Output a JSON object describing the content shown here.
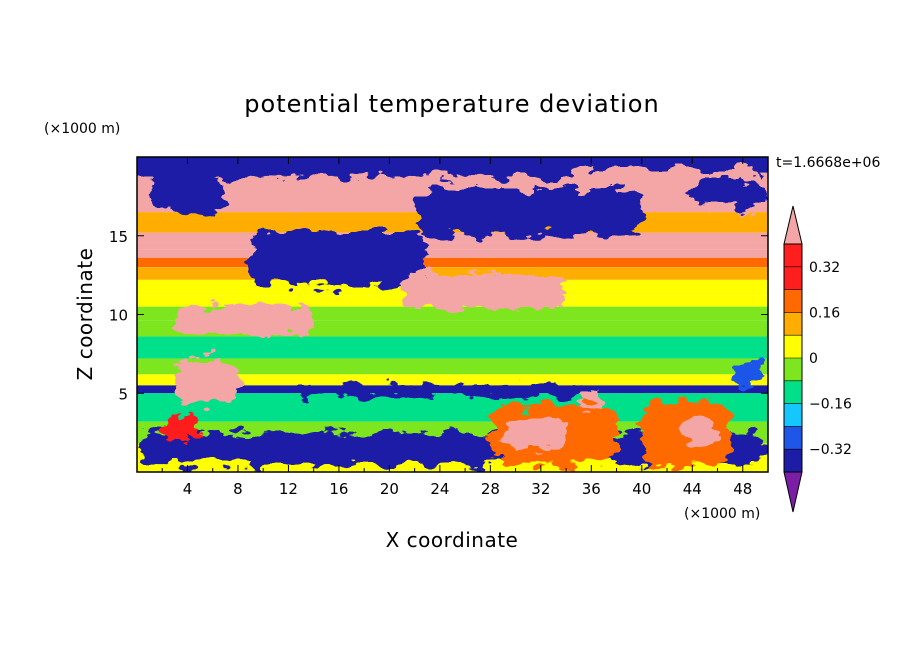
{
  "chart_data": {
    "type": "heatmap",
    "title": "potential temperature deviation",
    "xlabel": "X coordinate",
    "ylabel": "Z coordinate",
    "x_unit": "(×1000 m)",
    "y_unit": "(×1000 m)",
    "time_label": "t=1.6668e+06",
    "xlim": [
      0,
      50
    ],
    "ylim": [
      0,
      20
    ],
    "x_ticks": [
      4,
      8,
      12,
      16,
      20,
      24,
      28,
      32,
      36,
      40,
      44,
      48
    ],
    "y_ticks": [
      5,
      10,
      15
    ],
    "colorbar": {
      "levels": [
        -0.4,
        -0.32,
        -0.24,
        -0.16,
        -0.08,
        0,
        0.08,
        0.16,
        0.24,
        0.32,
        0.4
      ],
      "labels": [
        "0.32",
        "0.16",
        "0",
        "-0.16",
        "-0.32"
      ],
      "label_values": [
        0.32,
        0.16,
        0,
        -0.16,
        -0.32
      ],
      "colors_low_to_high": [
        "#7a1ea6",
        "#1c1ca6",
        "#1e56e8",
        "#14c8ff",
        "#00e08a",
        "#7ee61e",
        "#ffff00",
        "#ffad00",
        "#ff6a00",
        "#ff1e1e",
        "#f4a6a6"
      ]
    },
    "bands": [
      {
        "z": [
          19.0,
          20.0
        ],
        "value": -0.4
      },
      {
        "z": [
          16.5,
          19.0
        ],
        "value": 0.35
      },
      {
        "z": [
          15.2,
          16.5
        ],
        "value": 0.12
      },
      {
        "z": [
          14.6,
          15.2
        ],
        "value": 0.36
      },
      {
        "z": [
          14.1,
          14.6
        ],
        "value": 0.36
      },
      {
        "z": [
          13.6,
          14.1
        ],
        "value": 0.34
      },
      {
        "z": [
          13.0,
          13.6
        ],
        "value": 0.22
      },
      {
        "z": [
          12.2,
          13.0
        ],
        "value": 0.14
      },
      {
        "z": [
          11.2,
          12.2
        ],
        "value": 0.07
      },
      {
        "z": [
          10.5,
          11.2
        ],
        "value": 0.0
      },
      {
        "z": [
          9.6,
          10.5
        ],
        "value": -0.06
      },
      {
        "z": [
          8.6,
          9.6
        ],
        "value": -0.03
      },
      {
        "z": [
          7.2,
          8.6
        ],
        "value": -0.11
      },
      {
        "z": [
          6.2,
          7.2
        ],
        "value": -0.05
      },
      {
        "z": [
          5.5,
          6.2
        ],
        "value": 0.03
      },
      {
        "z": [
          5.0,
          5.5
        ],
        "value": -0.4
      },
      {
        "z": [
          3.2,
          5.0
        ],
        "value": -0.1
      },
      {
        "z": [
          1.8,
          3.2
        ],
        "value": -0.03
      },
      {
        "z": [
          0.0,
          1.8
        ],
        "value": 0.02
      }
    ],
    "patches": [
      {
        "x": [
          0,
          50
        ],
        "z": [
          18.6,
          20.0
        ],
        "value": -0.4
      },
      {
        "x": [
          8,
          33
        ],
        "z": [
          16.8,
          18.8
        ],
        "value": 0.35
      },
      {
        "x": [
          34,
          50
        ],
        "z": [
          16.7,
          19.3
        ],
        "value": 0.35
      },
      {
        "x": [
          9,
          23
        ],
        "z": [
          11.8,
          15.3
        ],
        "value": -0.4
      },
      {
        "x": [
          22,
          40
        ],
        "z": [
          15.0,
          18.0
        ],
        "value": -0.4
      },
      {
        "x": [
          1,
          7
        ],
        "z": [
          16.4,
          18.8
        ],
        "value": -0.4
      },
      {
        "x": [
          44,
          50
        ],
        "z": [
          16.8,
          18.6
        ],
        "value": -0.4
      },
      {
        "x": [
          3,
          14
        ],
        "z": [
          8.7,
          10.5
        ],
        "value": 0.35
      },
      {
        "x": [
          21,
          34
        ],
        "z": [
          10.4,
          12.6
        ],
        "value": 0.35
      },
      {
        "x": [
          3,
          8
        ],
        "z": [
          4.3,
          7.3
        ],
        "value": 0.35
      },
      {
        "x": [
          35,
          37
        ],
        "z": [
          3.5,
          5.2
        ],
        "value": 0.35
      },
      {
        "x": [
          12,
          36
        ],
        "z": [
          4.8,
          5.5
        ],
        "value": -0.4
      },
      {
        "x": [
          0,
          50
        ],
        "z": [
          0.5,
          2.5
        ],
        "value": -0.35
      },
      {
        "x": [
          28,
          38
        ],
        "z": [
          0.4,
          4.2
        ],
        "value": 0.22
      },
      {
        "x": [
          29,
          34
        ],
        "z": [
          1.5,
          3.5
        ],
        "value": 0.36
      },
      {
        "x": [
          40,
          47
        ],
        "z": [
          0.4,
          4.5
        ],
        "value": 0.22
      },
      {
        "x": [
          43,
          46
        ],
        "z": [
          1.5,
          3.8
        ],
        "value": 0.36
      },
      {
        "x": [
          2,
          5
        ],
        "z": [
          2.0,
          3.5
        ],
        "value": 0.3
      },
      {
        "x": [
          47,
          50
        ],
        "z": [
          5.5,
          7.0
        ],
        "value": -0.25
      }
    ]
  }
}
